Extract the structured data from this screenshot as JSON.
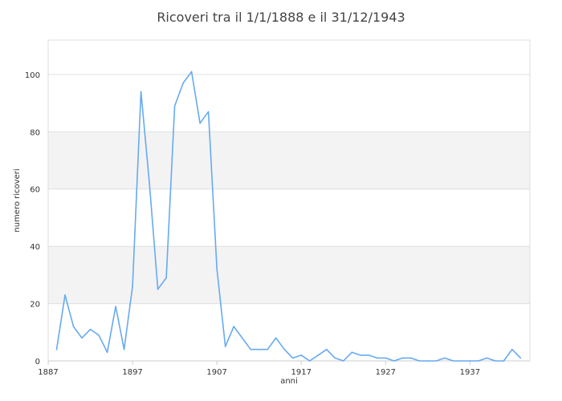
{
  "chart_data": {
    "type": "line",
    "title": "Ricoveri tra il 1/1/1888 e il 31/12/1943",
    "xlabel": "anni",
    "ylabel": "numero ricoveri",
    "xlim": [
      1887,
      1944.1
    ],
    "ylim": [
      0,
      112
    ],
    "xticks": [
      1887,
      1897,
      1907,
      1917,
      1927,
      1937
    ],
    "yticks": [
      0,
      20,
      40,
      60,
      80,
      100
    ],
    "grid": true,
    "line_color": "#66aaf0",
    "band_color": "#f3f3f3",
    "x": [
      1888,
      1889,
      1890,
      1891,
      1892,
      1893,
      1894,
      1895,
      1896,
      1897,
      1898,
      1899,
      1900,
      1901,
      1902,
      1903,
      1904,
      1905,
      1906,
      1907,
      1908,
      1909,
      1910,
      1911,
      1912,
      1913,
      1914,
      1915,
      1916,
      1917,
      1918,
      1919,
      1920,
      1921,
      1922,
      1923,
      1924,
      1925,
      1926,
      1927,
      1928,
      1929,
      1930,
      1931,
      1932,
      1933,
      1934,
      1935,
      1936,
      1937,
      1938,
      1939,
      1940,
      1941,
      1942,
      1943
    ],
    "values": [
      4,
      23,
      12,
      8,
      11,
      9,
      3,
      19,
      4,
      26,
      94,
      62,
      25,
      29,
      89,
      97,
      101,
      83,
      87,
      32,
      5,
      12,
      8,
      4,
      4,
      4,
      8,
      4,
      1,
      2,
      0,
      2,
      4,
      1,
      0,
      3,
      2,
      2,
      1,
      1,
      0,
      1,
      1,
      0,
      0,
      0,
      1,
      0,
      0,
      0,
      0,
      1,
      0,
      0,
      4,
      1
    ]
  }
}
